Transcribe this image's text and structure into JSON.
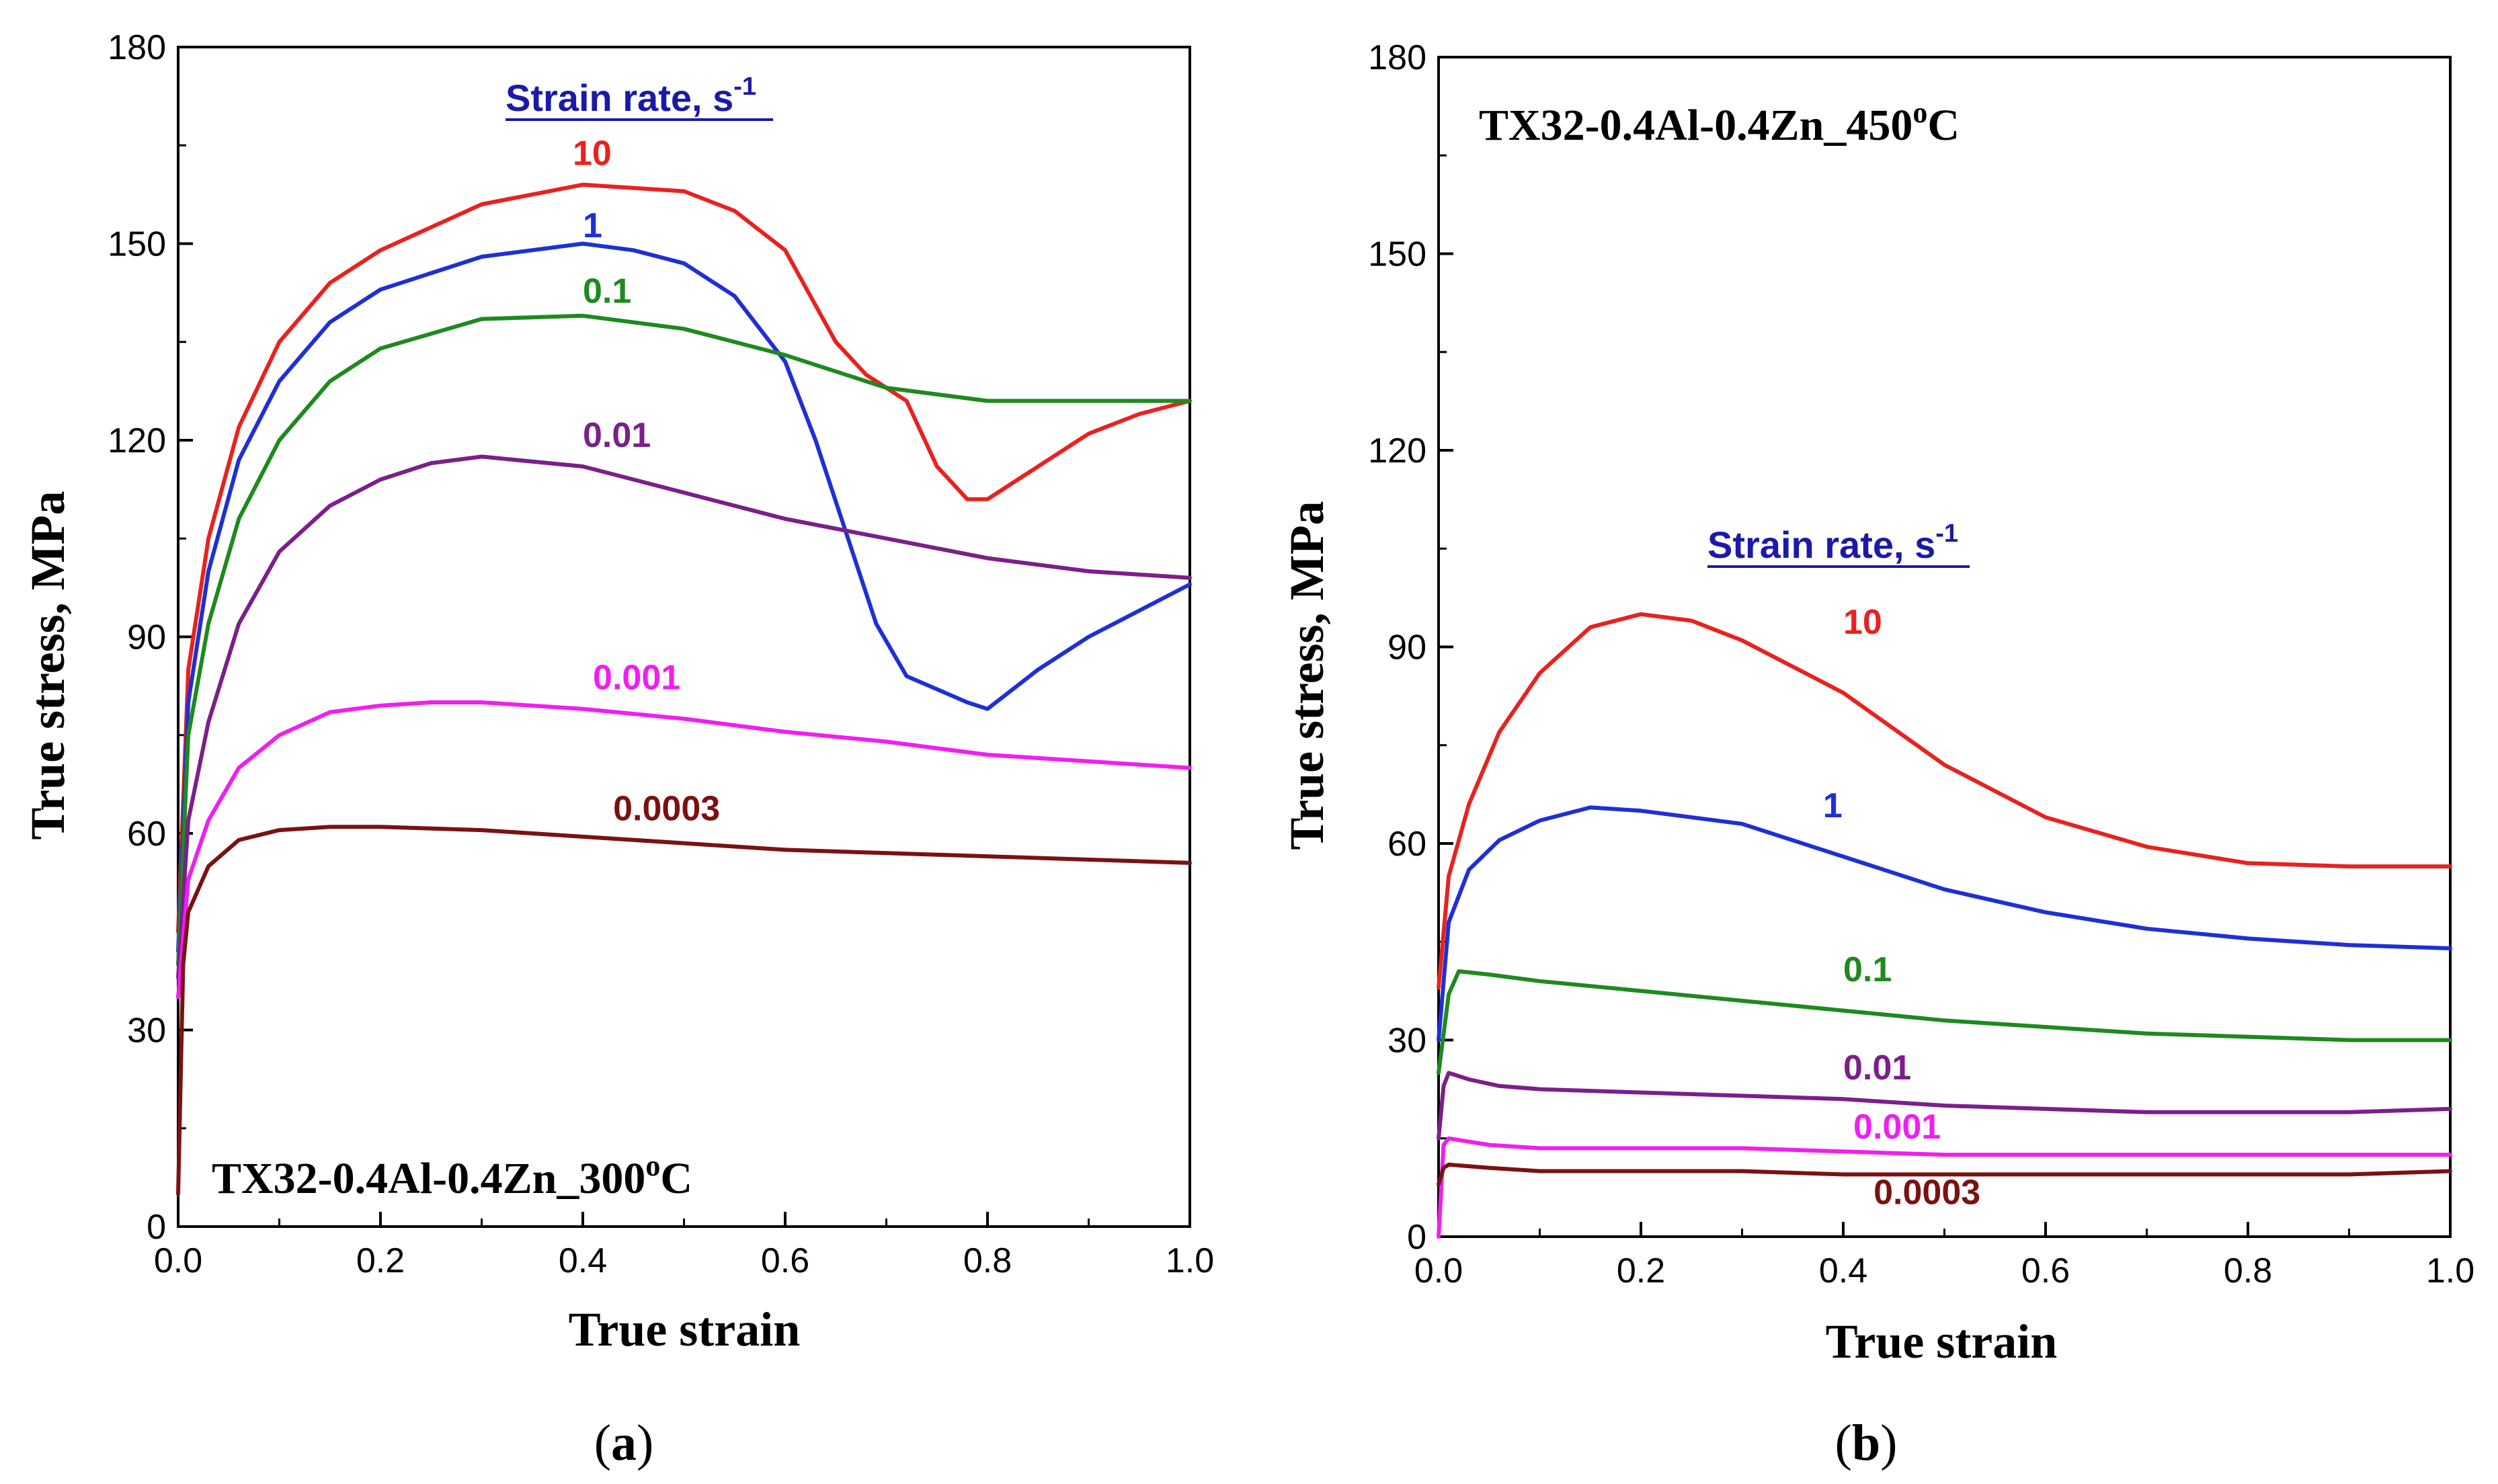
{
  "colors": {
    "10": "#e8221f",
    "1": "#1f2fd6",
    "0.1": "#1e8a1e",
    "0.01": "#7b1f8a",
    "0.001": "#f01ef0",
    "0.0003": "#7a1212",
    "legend_title": "#1a1aa8"
  },
  "chart_data": [
    {
      "type": "line",
      "title": "TX32-0.4Al-0.4Zn_300oC",
      "title_main": "TX32-0.4Al-0.4Zn_300",
      "title_sup": "o",
      "title_tail": "C",
      "caption_letter": "a",
      "xlabel": "True strain",
      "ylabel": "True stress, MPa",
      "xlim": [
        0,
        1
      ],
      "ylim": [
        0,
        180
      ],
      "xticks": [
        "0.0",
        "0.2",
        "0.4",
        "0.6",
        "0.8",
        "1.0"
      ],
      "yticks": [
        "0",
        "30",
        "60",
        "90",
        "120",
        "150",
        "180"
      ],
      "legend_title": "Strain rate, s",
      "legend_title_sup": "-1",
      "series": [
        {
          "name": "10",
          "label_x": 0.39,
          "label_y": 162,
          "x": [
            0,
            0.01,
            0.03,
            0.06,
            0.1,
            0.15,
            0.2,
            0.3,
            0.4,
            0.5,
            0.55,
            0.6,
            0.65,
            0.68,
            0.72,
            0.75,
            0.78,
            0.8,
            0.85,
            0.9,
            0.95,
            1.0
          ],
          "y": [
            45,
            85,
            105,
            122,
            135,
            144,
            149,
            156,
            159,
            158,
            155,
            149,
            135,
            130,
            126,
            116,
            111,
            111,
            116,
            121,
            124,
            126
          ]
        },
        {
          "name": "1",
          "label_x": 0.4,
          "label_y": 151,
          "x": [
            0,
            0.01,
            0.03,
            0.06,
            0.1,
            0.15,
            0.2,
            0.3,
            0.4,
            0.45,
            0.5,
            0.55,
            0.6,
            0.63,
            0.66,
            0.69,
            0.72,
            0.75,
            0.78,
            0.8,
            0.85,
            0.9,
            0.95,
            1.0
          ],
          "y": [
            42,
            80,
            100,
            117,
            129,
            138,
            143,
            148,
            150,
            149,
            147,
            142,
            132,
            120,
            106,
            92,
            84,
            82,
            80,
            79,
            85,
            90,
            94,
            98
          ]
        },
        {
          "name": "0.1",
          "label_x": 0.4,
          "label_y": 141,
          "x": [
            0,
            0.01,
            0.03,
            0.06,
            0.1,
            0.15,
            0.2,
            0.3,
            0.4,
            0.5,
            0.6,
            0.7,
            0.8,
            0.9,
            1.0
          ],
          "y": [
            40,
            75,
            92,
            108,
            120,
            129,
            134,
            138.5,
            139,
            137,
            133,
            128,
            126,
            126,
            126
          ]
        },
        {
          "name": "0.01",
          "label_x": 0.4,
          "label_y": 119,
          "x": [
            0,
            0.01,
            0.03,
            0.06,
            0.1,
            0.15,
            0.2,
            0.25,
            0.3,
            0.4,
            0.5,
            0.6,
            0.7,
            0.8,
            0.9,
            1.0
          ],
          "y": [
            38,
            62,
            77,
            92,
            103,
            110,
            114,
            116.5,
            117.5,
            116,
            112,
            108,
            105,
            102,
            100,
            99
          ]
        },
        {
          "name": "0.001",
          "label_x": 0.41,
          "label_y": 82,
          "x": [
            0,
            0.01,
            0.03,
            0.06,
            0.1,
            0.15,
            0.2,
            0.25,
            0.3,
            0.4,
            0.5,
            0.6,
            0.7,
            0.8,
            0.9,
            1.0
          ],
          "y": [
            35,
            53,
            62,
            70,
            75,
            78.5,
            79.5,
            80,
            80,
            79,
            77.5,
            75.5,
            74,
            72,
            71,
            70
          ]
        },
        {
          "name": "0.0003",
          "label_x": 0.43,
          "label_y": 62,
          "x": [
            0,
            0.005,
            0.01,
            0.03,
            0.06,
            0.1,
            0.15,
            0.2,
            0.3,
            0.4,
            0.5,
            0.6,
            0.7,
            0.8,
            0.9,
            1.0
          ],
          "y": [
            5,
            40,
            48,
            55,
            59,
            60.5,
            61,
            61,
            60.5,
            59.5,
            58.5,
            57.5,
            57,
            56.5,
            56,
            55.5
          ]
        }
      ]
    },
    {
      "type": "line",
      "title": "TX32-0.4Al-0.4Zn_450oC",
      "title_main": "TX32-0.4Al-0.4Zn_450",
      "title_sup": "o",
      "title_tail": "C",
      "caption_letter": "b",
      "xlabel": "True strain",
      "ylabel": "True stress, MPa",
      "xlim": [
        0,
        1
      ],
      "ylim": [
        0,
        180
      ],
      "xticks": [
        "0.0",
        "0.2",
        "0.4",
        "0.6",
        "0.8",
        "1.0"
      ],
      "yticks": [
        "0",
        "30",
        "60",
        "90",
        "120",
        "150",
        "180"
      ],
      "legend_title": "Strain rate, s",
      "legend_title_sup": "-1",
      "series": [
        {
          "name": "10",
          "label_x": 0.4,
          "label_y": 92,
          "x": [
            0,
            0.01,
            0.03,
            0.06,
            0.1,
            0.15,
            0.2,
            0.25,
            0.3,
            0.4,
            0.5,
            0.6,
            0.7,
            0.8,
            0.9,
            1.0
          ],
          "y": [
            38,
            55,
            66,
            77,
            86,
            93,
            95,
            94,
            91,
            83,
            72,
            64,
            59.5,
            57,
            56.5,
            56.5
          ]
        },
        {
          "name": "1",
          "label_x": 0.38,
          "label_y": 64,
          "x": [
            0,
            0.01,
            0.03,
            0.06,
            0.1,
            0.15,
            0.2,
            0.3,
            0.4,
            0.5,
            0.6,
            0.7,
            0.8,
            0.9,
            1.0
          ],
          "y": [
            30,
            48,
            56,
            60.5,
            63.5,
            65.5,
            65,
            63,
            58,
            53,
            49.5,
            47,
            45.5,
            44.5,
            44
          ]
        },
        {
          "name": "0.1",
          "label_x": 0.4,
          "label_y": 39,
          "x": [
            0,
            0.01,
            0.02,
            0.05,
            0.1,
            0.2,
            0.3,
            0.4,
            0.5,
            0.6,
            0.7,
            0.8,
            0.9,
            1.0
          ],
          "y": [
            25,
            37,
            40.5,
            40,
            39,
            37.5,
            36,
            34.5,
            33,
            32,
            31,
            30.5,
            30,
            30
          ]
        },
        {
          "name": "0.01",
          "label_x": 0.4,
          "label_y": 24,
          "x": [
            0,
            0.005,
            0.01,
            0.03,
            0.06,
            0.1,
            0.2,
            0.3,
            0.4,
            0.5,
            0.6,
            0.7,
            0.8,
            0.9,
            1.0
          ],
          "y": [
            15,
            23,
            25,
            24,
            23,
            22.5,
            22,
            21.5,
            21,
            20,
            19.5,
            19,
            19,
            19,
            19.5
          ]
        },
        {
          "name": "0.001",
          "label_x": 0.41,
          "label_y": 15,
          "x": [
            0,
            0.005,
            0.01,
            0.05,
            0.1,
            0.2,
            0.3,
            0.4,
            0.5,
            0.6,
            0.7,
            0.8,
            0.9,
            1.0
          ],
          "y": [
            0,
            14,
            15,
            14,
            13.5,
            13.5,
            13.5,
            13,
            12.5,
            12.5,
            12.5,
            12.5,
            12.5,
            12.5
          ]
        },
        {
          "name": "0.0003",
          "label_x": 0.43,
          "label_y": 5,
          "x": [
            0,
            0.005,
            0.01,
            0.05,
            0.1,
            0.2,
            0.3,
            0.4,
            0.5,
            0.6,
            0.7,
            0.8,
            0.9,
            1.0
          ],
          "y": [
            8,
            10.5,
            11,
            10.5,
            10,
            10,
            10,
            9.5,
            9.5,
            9.5,
            9.5,
            9.5,
            9.5,
            10
          ]
        }
      ]
    }
  ]
}
